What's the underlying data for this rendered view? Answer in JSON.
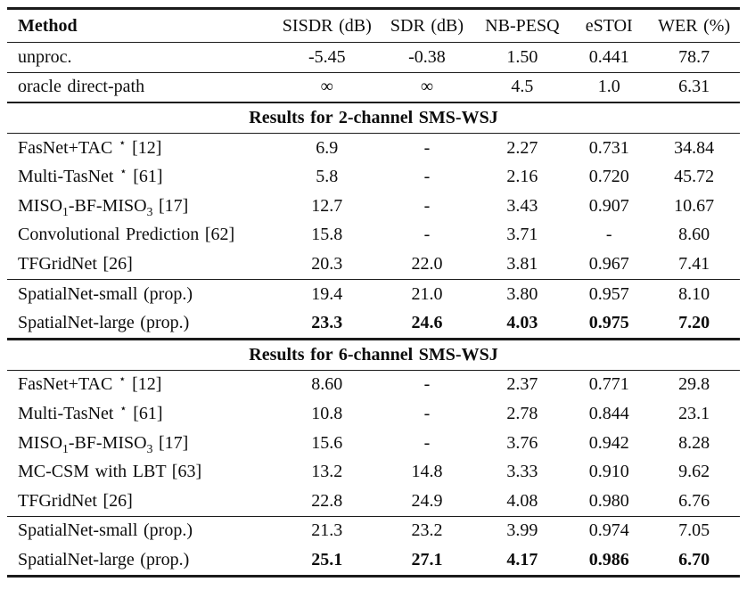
{
  "table": {
    "columns": [
      "Method",
      "SISDR (dB)",
      "SDR (dB)",
      "NB-PESQ",
      "eSTOI",
      "WER (%)"
    ],
    "intro_rows": [
      {
        "method": "unproc.",
        "values": [
          "-5.45",
          "-0.38",
          "1.50",
          "0.441",
          "78.7"
        ]
      },
      {
        "method": "oracle direct-path",
        "values": [
          "∞",
          "∞",
          "4.5",
          "1.0",
          "6.31"
        ]
      }
    ],
    "sections": [
      {
        "title": "Results for 2-channel SMS-WSJ",
        "baseline_rows": [
          {
            "method": "FasNet+TAC ^⋆^ [12]",
            "values": [
              "6.9",
              "-",
              "2.27",
              "0.731",
              "34.84"
            ]
          },
          {
            "method": "Multi-TasNet ^⋆^ [61]",
            "values": [
              "5.8",
              "-",
              "2.16",
              "0.720",
              "45.72"
            ]
          },
          {
            "method": "MISO~1~-BF-MISO~3~ [17]",
            "values": [
              "12.7",
              "-",
              "3.43",
              "0.907",
              "10.67"
            ]
          },
          {
            "method": "Convolutional Prediction [62]",
            "values": [
              "15.8",
              "-",
              "3.71",
              "-",
              "8.60"
            ]
          },
          {
            "method": "TFGridNet [26]",
            "values": [
              "20.3",
              "22.0",
              "3.81",
              "0.967",
              "7.41"
            ]
          }
        ],
        "proposed_rows": [
          {
            "method": "SpatialNet-small (prop.)",
            "values": [
              "19.4",
              "21.0",
              "3.80",
              "0.957",
              "8.10"
            ]
          },
          {
            "method": "SpatialNet-large (prop.)",
            "values": [
              "23.3",
              "24.6",
              "4.03",
              "0.975",
              "7.20"
            ],
            "bold_values": true
          }
        ]
      },
      {
        "title": "Results for 6-channel SMS-WSJ",
        "baseline_rows": [
          {
            "method": "FasNet+TAC ^⋆^ [12]",
            "values": [
              "8.60",
              "-",
              "2.37",
              "0.771",
              "29.8"
            ]
          },
          {
            "method": "Multi-TasNet ^⋆^ [61]",
            "values": [
              "10.8",
              "-",
              "2.78",
              "0.844",
              "23.1"
            ]
          },
          {
            "method": "MISO~1~-BF-MISO~3~ [17]",
            "values": [
              "15.6",
              "-",
              "3.76",
              "0.942",
              "8.28"
            ]
          },
          {
            "method": "MC-CSM with LBT [63]",
            "values": [
              "13.2",
              "14.8",
              "3.33",
              "0.910",
              "9.62"
            ]
          },
          {
            "method": "TFGridNet [26]",
            "values": [
              "22.8",
              "24.9",
              "4.08",
              "0.980",
              "6.76"
            ]
          }
        ],
        "proposed_rows": [
          {
            "method": "SpatialNet-small (prop.)",
            "values": [
              "21.3",
              "23.2",
              "3.99",
              "0.974",
              "7.05"
            ]
          },
          {
            "method": "SpatialNet-large (prop.)",
            "values": [
              "25.1",
              "27.1",
              "4.17",
              "0.986",
              "6.70"
            ],
            "bold_values": true
          }
        ]
      }
    ]
  },
  "colors": {
    "text": "#0d0d0d",
    "rule": "#1b1b1b",
    "background": "#ffffff"
  }
}
